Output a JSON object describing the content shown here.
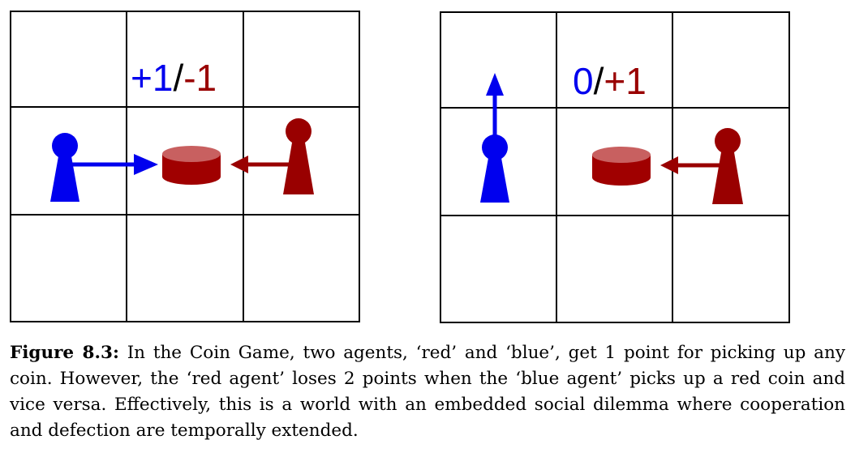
{
  "panels": [
    {
      "score_blue": "+1",
      "score_sep": "/",
      "score_red": "-1"
    },
    {
      "score_blue": "0",
      "score_sep": "/",
      "score_red": "+1"
    }
  ],
  "colors": {
    "blue": "#0000ee",
    "red": "#990000",
    "coin_top": "#c86060",
    "coin_body": "#a00000",
    "grid": "#000000"
  },
  "caption": {
    "label": "Figure 8.3:",
    "text": "In the Coin Game, two agents, ‘red’ and ‘blue’, get 1 point for picking up any coin. However, the ‘red agent’ loses 2 points when the ‘blue agent’ picks up a red coin and vice versa. Effectively, this is a world with an embedded social dilemma where cooperation and defection are temporally extended."
  }
}
